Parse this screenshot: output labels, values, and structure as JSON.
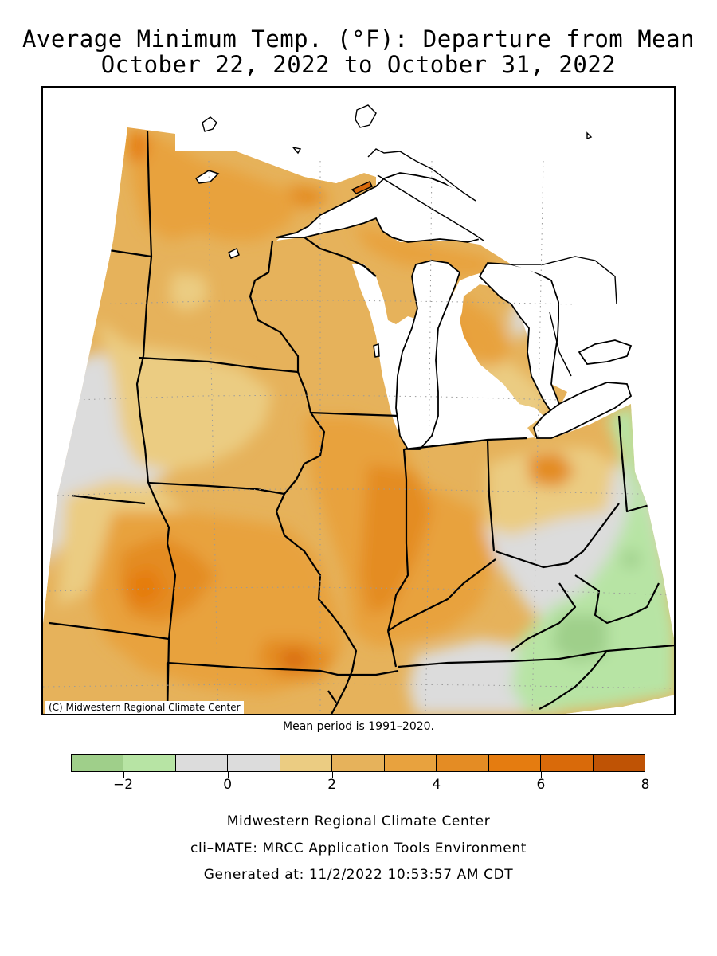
{
  "title": {
    "line1": "Average Minimum Temp. (°F): Departure from Mean",
    "line2": "October 22, 2022 to October 31, 2022"
  },
  "map": {
    "copyright": "(C) Midwestern Regional Climate Center",
    "mean_period": "Mean period is 1991–2020."
  },
  "legend": {
    "bins": [
      {
        "range": [
          -3,
          -2
        ],
        "color": "#9fcf8a"
      },
      {
        "range": [
          -2,
          -1
        ],
        "color": "#b7e4a4"
      },
      {
        "range": [
          -1,
          0
        ],
        "color": "#dcdcdc"
      },
      {
        "range": [
          0,
          1
        ],
        "color": "#dcdcdc"
      },
      {
        "range": [
          1,
          2
        ],
        "color": "#ebcc82"
      },
      {
        "range": [
          2,
          3
        ],
        "color": "#e6b25b"
      },
      {
        "range": [
          3,
          4
        ],
        "color": "#e8a23e"
      },
      {
        "range": [
          4,
          5
        ],
        "color": "#e48c24"
      },
      {
        "range": [
          5,
          6
        ],
        "color": "#e57c10"
      },
      {
        "range": [
          6,
          7
        ],
        "color": "#d96a0a"
      },
      {
        "range": [
          7,
          8
        ],
        "color": "#bf5305"
      }
    ],
    "tick_labels": [
      "−2",
      "0",
      "2",
      "4",
      "6",
      "8"
    ],
    "tick_values": [
      -2,
      0,
      2,
      4,
      6,
      8
    ],
    "min": -3,
    "max": 8
  },
  "footer": {
    "line1": "Midwestern Regional Climate Center",
    "line2": "cli–MATE: MRCC Application Tools Environment",
    "line3": "Generated at: 11/2/2022 10:53:57 AM CDT"
  },
  "colors": {
    "water": "#ffffff",
    "border": "#000000"
  }
}
